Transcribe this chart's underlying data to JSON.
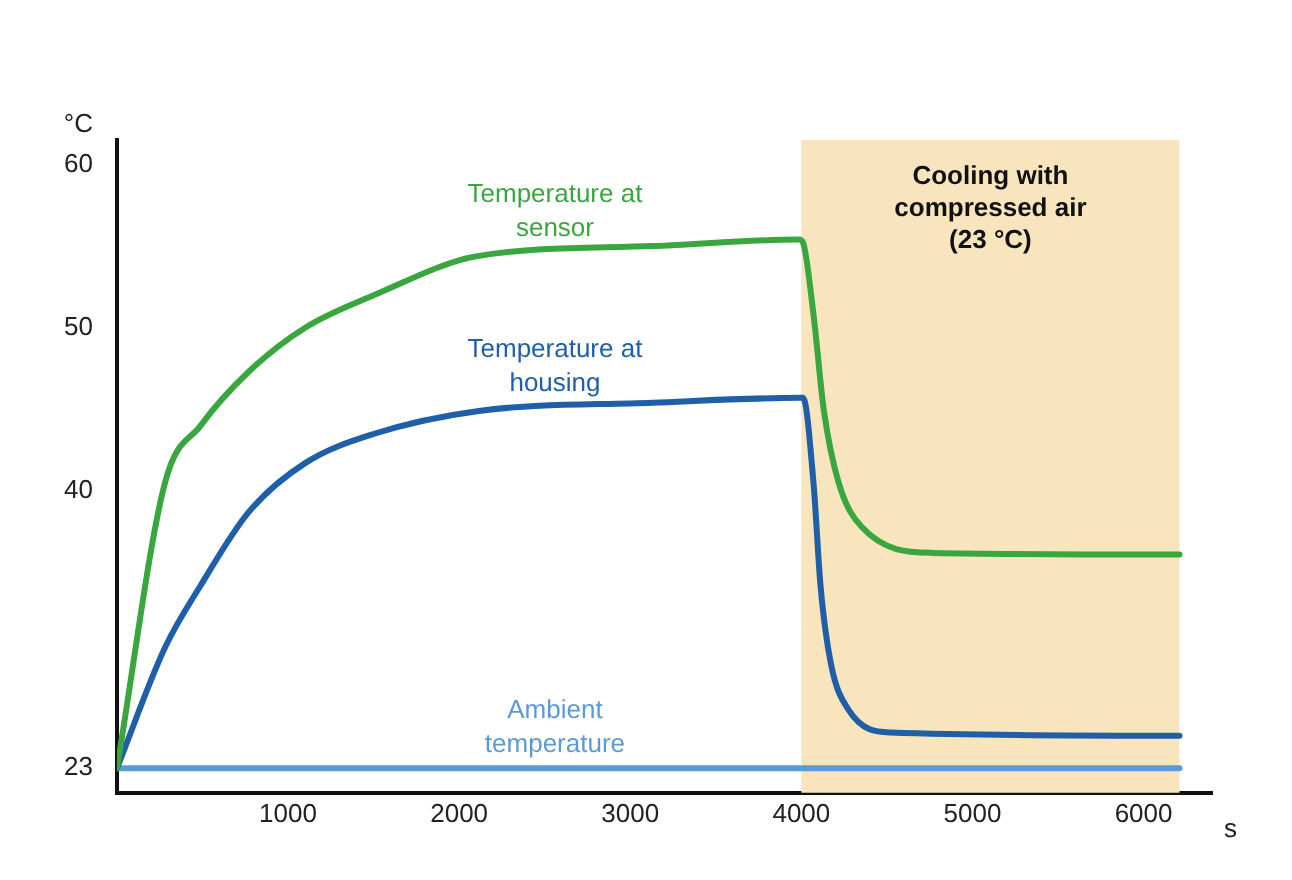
{
  "chart_data": {
    "type": "line",
    "xlabel": "s",
    "ylabel": "°C",
    "xlim": [
      0,
      6400
    ],
    "xticks": [
      1000,
      2000,
      3000,
      4000,
      5000,
      6000
    ],
    "ylim": [
      21.5,
      61.5
    ],
    "yticks": [
      23,
      40,
      50,
      60
    ],
    "grid": false,
    "legend": false,
    "marker": "none",
    "line_style": "solid",
    "series": [
      {
        "name": "Temperature at sensor",
        "color": "#3aa640",
        "x": [
          0,
          281,
          489,
          770,
          1100,
          1504,
          2115,
          3130,
          3985,
          4010,
          4071,
          4132,
          4218,
          4352,
          4768,
          6210
        ],
        "values": [
          23,
          40.5,
          44,
          47.3,
          50,
          52,
          54.4,
          55,
          55.4,
          55.2,
          50.8,
          44.9,
          40.5,
          37.8,
          36.2,
          36.1
        ]
      },
      {
        "name": "Temperature at housing",
        "color": "#1f5fa8",
        "x": [
          0,
          281,
          489,
          770,
          1100,
          1504,
          2115,
          3130,
          3985,
          4010,
          4071,
          4112,
          4173,
          4275,
          4520,
          6210
        ],
        "values": [
          23,
          30.4,
          34.2,
          38.7,
          41.7,
          43.5,
          44.9,
          45.4,
          45.7,
          45.7,
          40.5,
          34.2,
          29.4,
          26.6,
          25.2,
          25
        ]
      },
      {
        "name": "Ambient temperature",
        "color": "#5b9bd5",
        "x": [
          0,
          6210
        ],
        "values": [
          23,
          23
        ]
      }
    ],
    "bands": [
      {
        "axis": "x",
        "from": 4000,
        "to": 6210,
        "label": "Cooling with compressed air (23 °C)",
        "color": "#f8e4bd"
      }
    ]
  }
}
